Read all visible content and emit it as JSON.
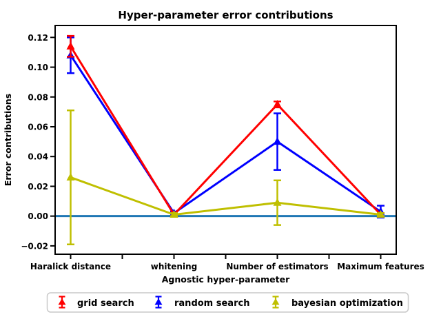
{
  "chart_data": {
    "type": "line",
    "title": "Hyper-parameter error contributions",
    "xlabel": "Agnostic hyper-parameter",
    "ylabel": "Error contributions",
    "categories": [
      "Haralick distance",
      "whitening",
      "Number of estimators",
      "Maximum features"
    ],
    "series": [
      {
        "name": "grid search",
        "color": "#ff0000",
        "marker": "triangle-up",
        "values": [
          0.114,
          0.001,
          0.075,
          0.001
        ],
        "yerr": [
          0.007,
          0.001,
          0.002,
          0.001
        ]
      },
      {
        "name": "random search",
        "color": "#0000ff",
        "marker": "triangle-up",
        "values": [
          0.108,
          0.002,
          0.05,
          0.003
        ],
        "yerr": [
          0.012,
          0.001,
          0.019,
          0.004
        ]
      },
      {
        "name": "bayesian optimization",
        "color": "#bfbf00",
        "marker": "triangle-up",
        "values": [
          0.026,
          0.001,
          0.009,
          0.001
        ],
        "yerr": [
          0.045,
          0.001,
          0.015,
          0.001
        ]
      }
    ],
    "baseline": {
      "y": 0.0,
      "color": "#1f77b4"
    },
    "ytick_values": [
      -0.02,
      0.0,
      0.02,
      0.04,
      0.06,
      0.08,
      0.1,
      0.12
    ],
    "ytick_labels": [
      "−0.02",
      "0.00",
      "0.02",
      "0.04",
      "0.06",
      "0.08",
      "0.10",
      "0.12"
    ],
    "xticks_major": [
      0,
      1,
      2,
      3
    ],
    "xticks_minor": [
      0.5,
      1.5,
      2.5
    ],
    "xlim": [
      -0.15,
      3.15
    ],
    "ylim": [
      -0.0256,
      0.128
    ],
    "grid": false,
    "legend_position": "bottom",
    "axis_color": "#000000",
    "legend_border_color": "#c9c9c9"
  }
}
